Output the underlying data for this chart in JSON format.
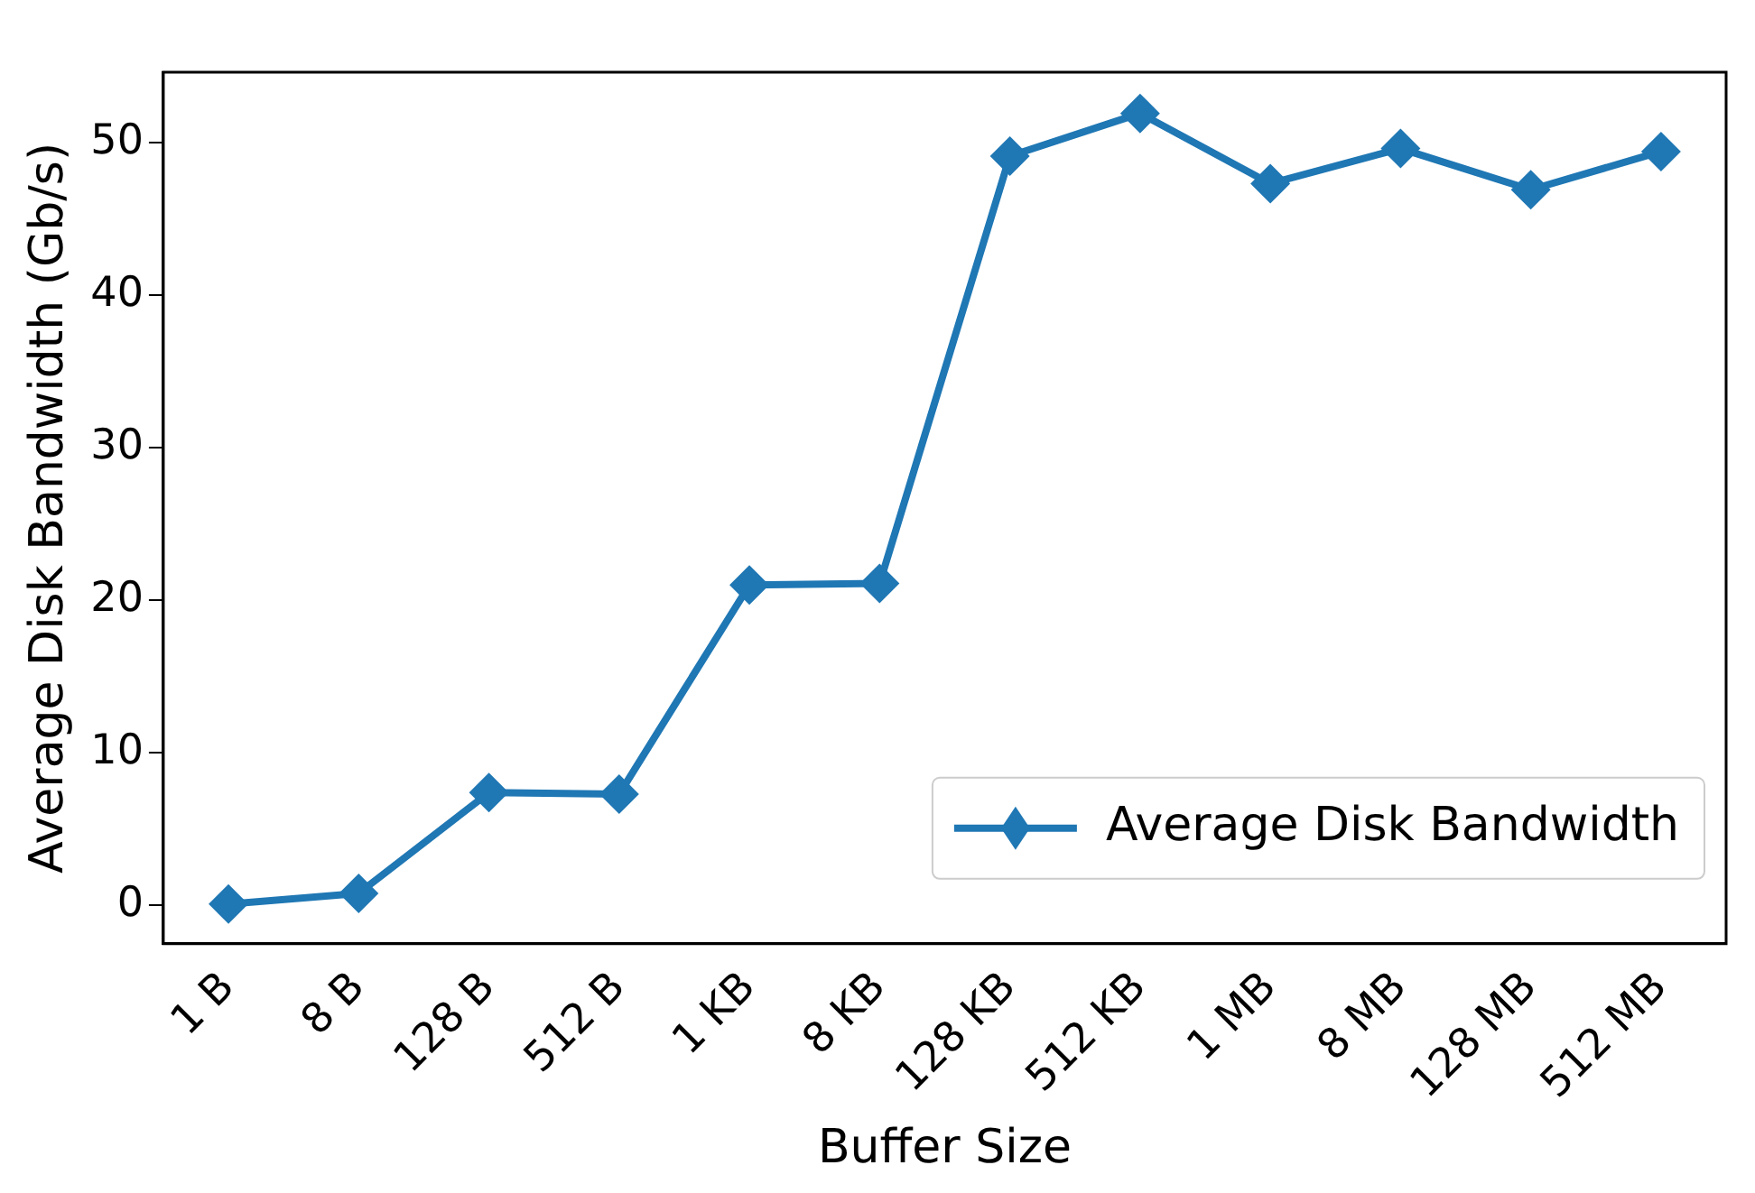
{
  "chart_data": {
    "type": "line",
    "xlabel": "Buffer Size",
    "ylabel": "Average Disk Bandwidth (Gb/s)",
    "categories": [
      "1 B",
      "8 B",
      "128 B",
      "512 B",
      "1 KB",
      "8 KB",
      "128 KB",
      "512 KB",
      "1 MB",
      "8 MB",
      "128 MB",
      "512 MB"
    ],
    "series": [
      {
        "name": "Average Disk Bandwidth",
        "color": "#1f77b4",
        "values": [
          0.1,
          0.8,
          7.4,
          7.3,
          21.0,
          21.1,
          49.1,
          51.9,
          47.3,
          49.6,
          46.9,
          49.4
        ]
      }
    ],
    "ylim": [
      -2.5,
      54.6
    ],
    "yticks": [
      0,
      10,
      20,
      30,
      40,
      50
    ],
    "grid": false,
    "legend": "bottom right",
    "marker": "diamond",
    "line_style": "solid"
  }
}
